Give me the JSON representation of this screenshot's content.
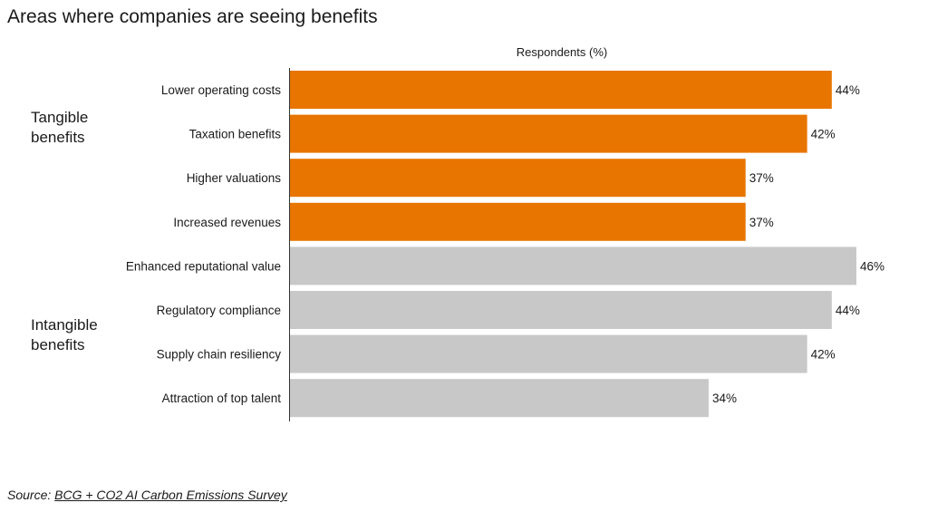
{
  "title": "Areas where companies are seeing benefits",
  "groups": [
    {
      "label_line1": "Tangible",
      "label_line2": "benefits"
    },
    {
      "label_line1": "Intangible",
      "label_line2": "benefits"
    }
  ],
  "source": {
    "prefix": "Source: ",
    "link_text": "BCG + CO2 AI Carbon Emissions Survey"
  },
  "colors": {
    "tangible": "#E87500",
    "intangible": "#C8C8C8",
    "axis": "#333333"
  },
  "chart_data": {
    "type": "bar",
    "orientation": "horizontal",
    "title": "Areas where companies are seeing benefits",
    "xlabel": "Respondents (%)",
    "ylabel": "",
    "xlim": [
      0,
      46
    ],
    "grid": false,
    "categories": [
      "Lower operating costs",
      "Taxation benefits",
      "Higher valuations",
      "Increased revenues",
      "Enhanced reputational value",
      "Regulatory compliance",
      "Supply chain resiliency",
      "Attraction of top talent"
    ],
    "values": [
      44,
      42,
      37,
      37,
      46,
      44,
      42,
      34
    ],
    "data_labels": [
      "44%",
      "42%",
      "37%",
      "37%",
      "46%",
      "44%",
      "42%",
      "34%"
    ],
    "bar_groups": [
      "tangible",
      "tangible",
      "tangible",
      "tangible",
      "intangible",
      "intangible",
      "intangible",
      "intangible"
    ]
  }
}
